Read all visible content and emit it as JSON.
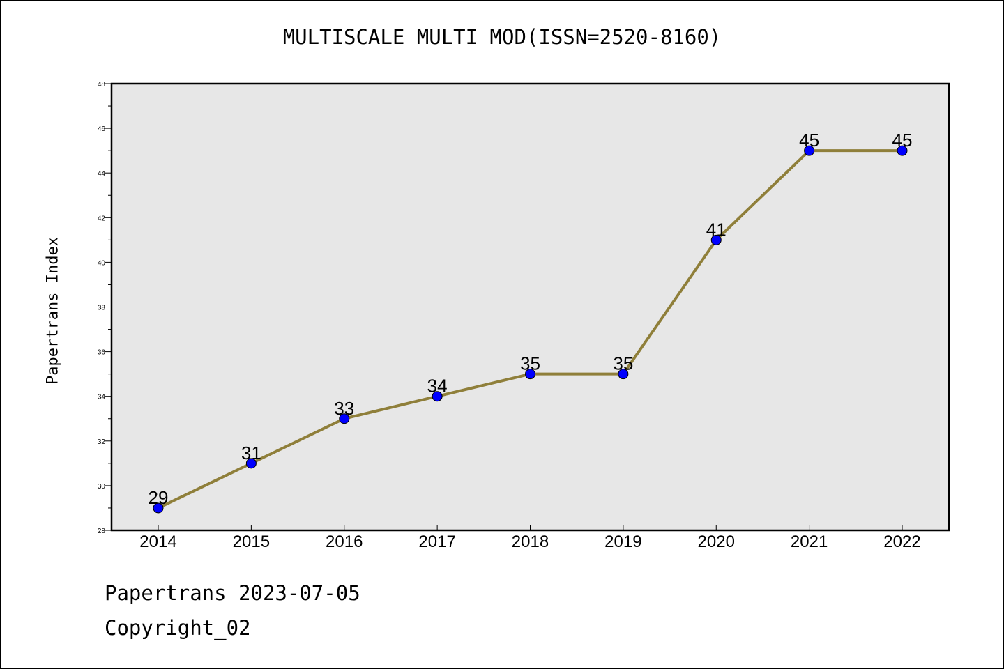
{
  "chart_data": {
    "type": "line",
    "title": "MULTISCALE MULTI MOD(ISSN=2520-8160)",
    "xlabel": "",
    "ylabel": "Papertrans Index",
    "categories": [
      "2014",
      "2015",
      "2016",
      "2017",
      "2018",
      "2019",
      "2020",
      "2021",
      "2022"
    ],
    "values": [
      29,
      31,
      33,
      34,
      35,
      35,
      41,
      45,
      45
    ],
    "data_labels": [
      "29",
      "31",
      "33",
      "34",
      "35",
      "35",
      "41",
      "45",
      "45"
    ],
    "ylim": [
      28,
      48
    ],
    "y_ticks": [
      "28",
      "30",
      "32",
      "34",
      "36",
      "38",
      "40",
      "42",
      "44",
      "46",
      "48"
    ],
    "grid": false,
    "line_color": "#8f7f3a",
    "marker_color": "#0000ff",
    "plot_background": "#e7e7e7"
  },
  "footer": {
    "date_line": "Papertrans 2023-07-05",
    "copyright_line": "Copyright_02"
  }
}
